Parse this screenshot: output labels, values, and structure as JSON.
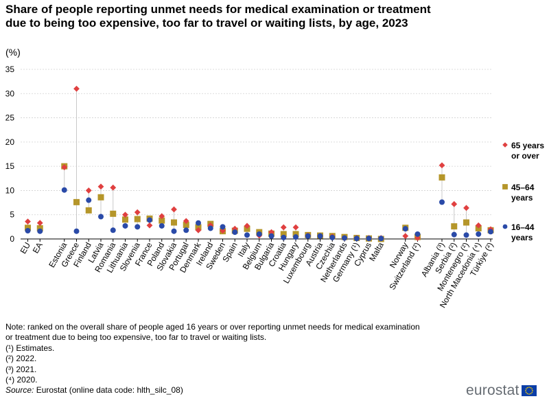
{
  "title": "Share of people reporting unmet needs for medical examination or treatment due to being too expensive, too far to travel or waiting lists, by age, 2023",
  "unit_label": "(%)",
  "notes": [
    "Note: ranked on the overall share of people aged 16 years or over reporting unmet needs for medical examination",
    "or treatment due to being too expensive, too far to travel or waiting lists.",
    "(¹) Estimates.",
    "(²) 2022.",
    "(³) 2021.",
    "(⁴) 2020."
  ],
  "source_label": "Source:",
  "source_text": " Eurostat (online data code: hlth_silc_08)",
  "logo_text": "eurostat",
  "colors": {
    "s65": "#e04040",
    "s45": "#b5962a",
    "s16": "#2a4aa8",
    "grid": "#d0d0d0",
    "stem": "#c8c8c8"
  },
  "chart_data": {
    "type": "scatter",
    "ylim": [
      0,
      35
    ],
    "yticks": [
      0,
      5,
      10,
      15,
      20,
      25,
      30,
      35
    ],
    "grid": true,
    "legend_position": "right",
    "categories": [
      "EU",
      "EA",
      "Estonia",
      "Greece",
      "Finland",
      "Latvia",
      "Romania",
      "Lithuania",
      "Slovenia",
      "France",
      "Poland",
      "Slovakia",
      "Portugal",
      "Denmark",
      "Ireland",
      "Sweden",
      "Spain",
      "Italy",
      "Belgium",
      "Bulgaria",
      "Croatia",
      "Hungary",
      "Luxembourg",
      "Austria",
      "Czechia",
      "Netherlands",
      "Germany (¹)",
      "Cyprus",
      "Malta",
      "Norway",
      "Switzerland (²)",
      "Albania (³)",
      "Serbia (²)",
      "Montenegro (²)",
      "North Macedonia (⁴)",
      "Türkiye (²)"
    ],
    "series": [
      {
        "name": "65 years or over",
        "label_lines": [
          "65 years",
          "or over"
        ],
        "marker": "diamond",
        "values": [
          3.6,
          3.3,
          14.8,
          31.0,
          10.0,
          10.8,
          10.6,
          5.0,
          5.5,
          2.8,
          4.7,
          6.1,
          3.7,
          1.8,
          2.8,
          1.7,
          2.1,
          2.7,
          0.7,
          1.4,
          2.4,
          2.4,
          0.7,
          0.6,
          0.5,
          0.2,
          0.2,
          0.2,
          0.2,
          0.6,
          0.2,
          15.2,
          7.2,
          6.4,
          2.8,
          2.0
        ]
      },
      {
        "name": "45–64 years",
        "label_lines": [
          "45–64",
          "years"
        ],
        "marker": "square",
        "values": [
          2.3,
          2.2,
          15.0,
          7.6,
          5.9,
          8.6,
          5.2,
          4.0,
          4.1,
          4.2,
          3.8,
          3.4,
          2.9,
          2.4,
          3.1,
          1.6,
          1.7,
          2.1,
          1.4,
          1.1,
          1.0,
          1.0,
          0.8,
          0.7,
          0.6,
          0.4,
          0.2,
          0.1,
          0.0,
          2.3,
          0.4,
          12.7,
          2.6,
          3.4,
          2.2,
          1.8
        ]
      },
      {
        "name": "16–44 years",
        "label_lines": [
          "16–44",
          "years"
        ],
        "marker": "circle",
        "values": [
          1.7,
          1.6,
          10.1,
          1.6,
          8.0,
          4.6,
          1.8,
          2.7,
          2.5,
          3.9,
          2.7,
          1.6,
          1.8,
          3.3,
          2.2,
          2.5,
          1.4,
          0.8,
          1.0,
          0.6,
          0.3,
          0.4,
          0.6,
          0.6,
          0.3,
          0.2,
          0.1,
          0.1,
          0.1,
          2.1,
          1.0,
          7.6,
          0.9,
          0.8,
          1.0,
          1.5
        ]
      }
    ]
  }
}
